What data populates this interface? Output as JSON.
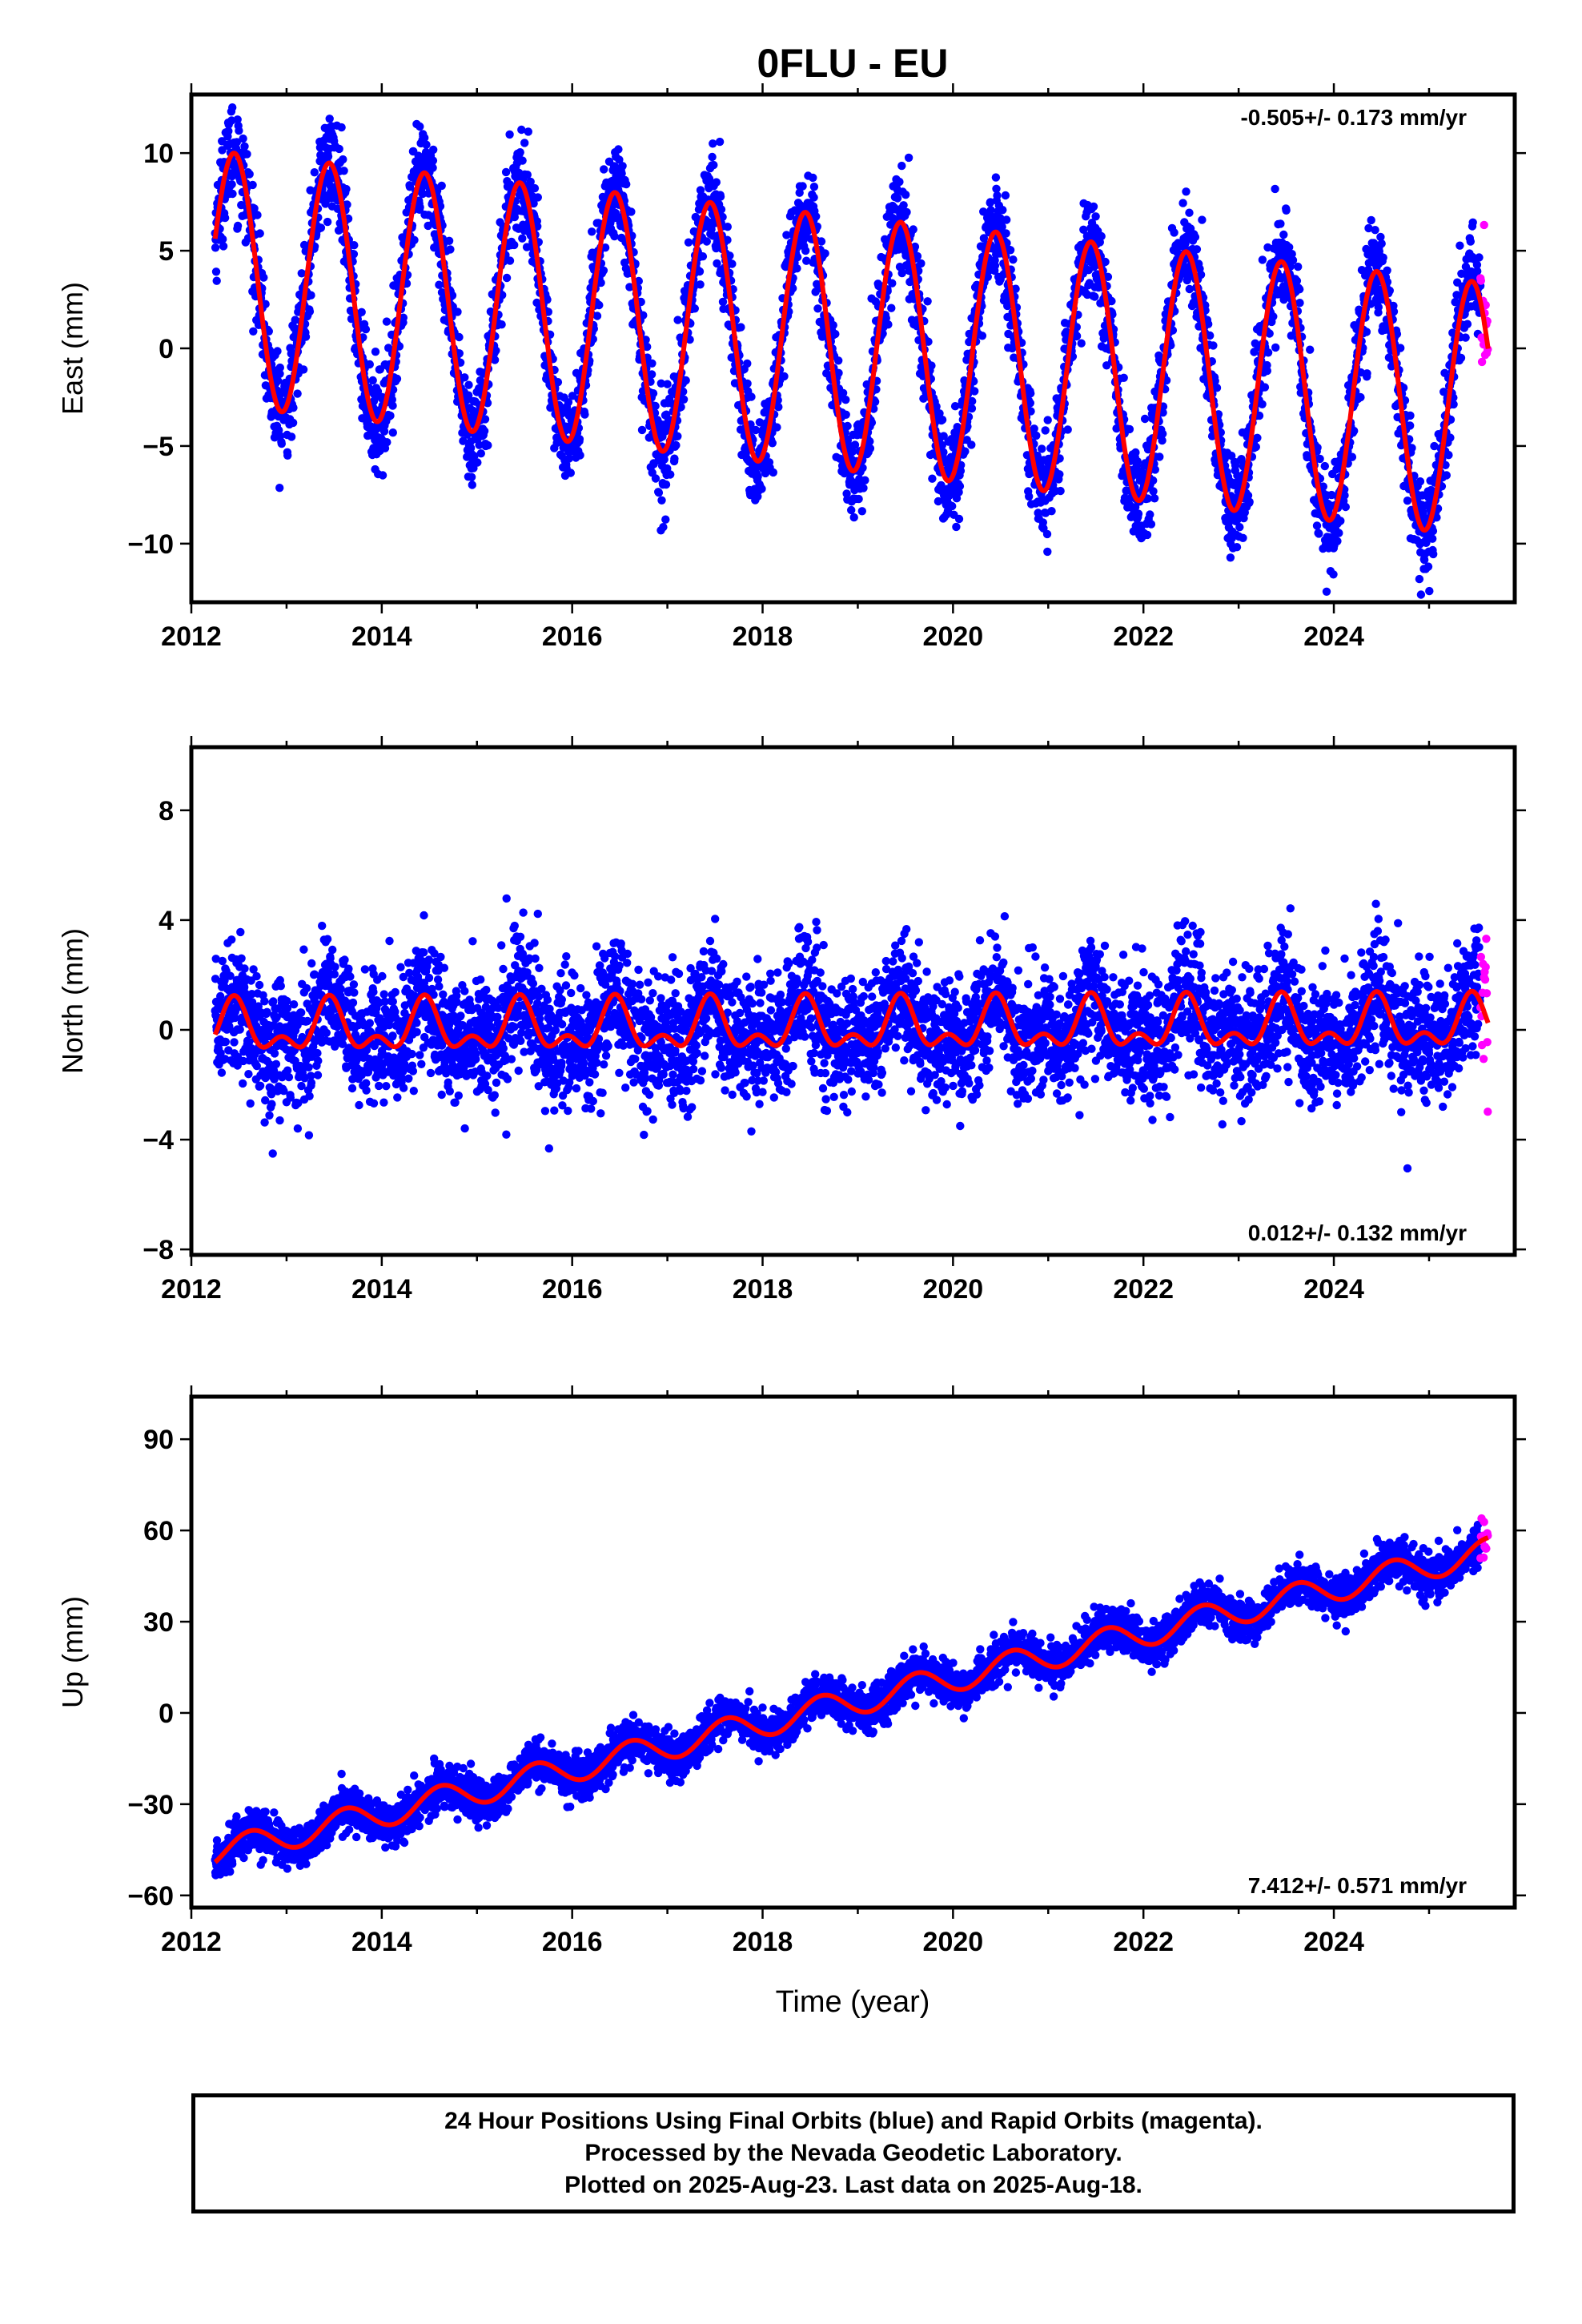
{
  "chart_data": [
    {
      "type": "scatter",
      "panel": "east",
      "title": "0FLU - EU",
      "ylabel": "East (mm)",
      "xlabel": "",
      "xlim": [
        2012,
        2025.9
      ],
      "ylim": [
        -13,
        13
      ],
      "x_ticks": [
        2012,
        2014,
        2016,
        2018,
        2020,
        2022,
        2024
      ],
      "y_ticks": [
        -10,
        -5,
        0,
        5,
        10
      ],
      "y_tick_labels": [
        "−10",
        "−5",
        "0",
        "5",
        "10"
      ],
      "rate_label": "-0.505+/- 0.173 mm/yr",
      "rate_position": "top-right",
      "x_start": 2012.25,
      "x_end": 2025.62,
      "rapid_start": 2025.54,
      "model": {
        "offset": 3.6,
        "trend_mm_per_yr": -0.505,
        "annual_amplitude": 6.5,
        "annual_peak_phase": 0.45
      },
      "noise_sd": 1.3,
      "series": [
        {
          "role": "final",
          "color": "#0000ff"
        },
        {
          "role": "rapid",
          "color": "#ff00ff"
        },
        {
          "role": "model",
          "color": "#ff0000"
        }
      ]
    },
    {
      "type": "scatter",
      "panel": "north",
      "title": "",
      "ylabel": "North (mm)",
      "xlabel": "",
      "xlim": [
        2012,
        2025.9
      ],
      "ylim": [
        -8.2,
        10.3
      ],
      "x_ticks": [
        2012,
        2014,
        2016,
        2018,
        2020,
        2022,
        2024
      ],
      "y_ticks": [
        -8,
        -4,
        0,
        4,
        8
      ],
      "y_tick_labels": [
        "−8",
        "−4",
        "0",
        "4",
        "8"
      ],
      "rate_label": "0.012+/- 0.132 mm/yr",
      "rate_position": "bottom-right",
      "x_start": 2012.25,
      "x_end": 2025.62,
      "rapid_start": 2025.54,
      "model": {
        "offset": 0.0,
        "trend_mm_per_yr": 0.012,
        "annual_amplitude": 0.75,
        "annual_peak_phase": 0.45,
        "semiannual_amplitude": 0.5,
        "semiannual_peak_phase": 0.45
      },
      "noise_sd": 1.15,
      "series": [
        {
          "role": "final",
          "color": "#0000ff"
        },
        {
          "role": "rapid",
          "color": "#ff00ff"
        },
        {
          "role": "model",
          "color": "#ff0000"
        }
      ]
    },
    {
      "type": "scatter",
      "panel": "up",
      "title": "",
      "ylabel": "Up (mm)",
      "xlabel": "Time (year)",
      "xlim": [
        2012,
        2025.9
      ],
      "ylim": [
        -64,
        104
      ],
      "x_ticks": [
        2012,
        2014,
        2016,
        2018,
        2020,
        2022,
        2024
      ],
      "y_ticks": [
        -60,
        -30,
        0,
        30,
        60,
        90
      ],
      "y_tick_labels": [
        "−60",
        "−30",
        "0",
        "30",
        "60",
        "90"
      ],
      "rate_label": "7.412+/- 0.571 mm/yr",
      "rate_position": "bottom-right",
      "x_start": 2012.25,
      "x_end": 2025.62,
      "rapid_start": 2025.54,
      "model": {
        "offset": -46.0,
        "trend_mm_per_yr": 7.412,
        "annual_amplitude": 4.5,
        "annual_peak_phase": 0.62
      },
      "noise_sd": 3.4,
      "series": [
        {
          "role": "final",
          "color": "#0000ff"
        },
        {
          "role": "rapid",
          "color": "#ff00ff"
        },
        {
          "role": "model",
          "color": "#ff0000"
        }
      ]
    }
  ],
  "caption": {
    "line1": "24 Hour Positions Using Final Orbits (blue) and Rapid Orbits (magenta).",
    "line2": "Processed by the Nevada Geodetic Laboratory.",
    "line3": "Plotted on 2025-Aug-23. Last data on 2025-Aug-18."
  }
}
